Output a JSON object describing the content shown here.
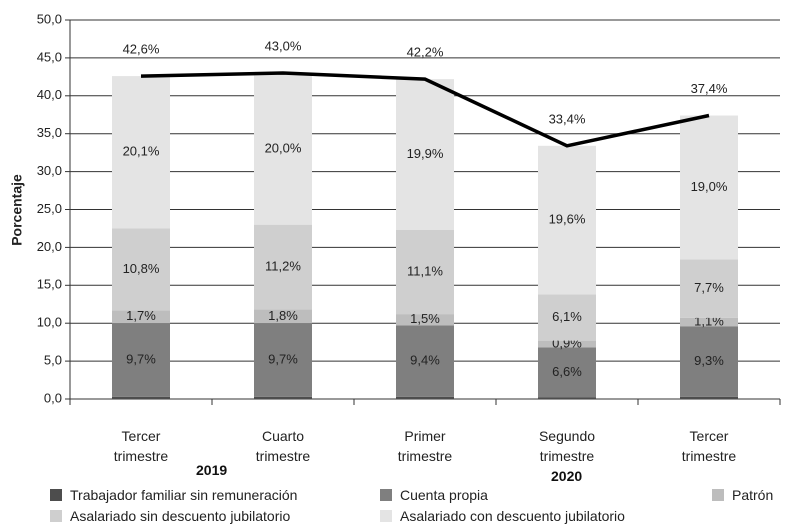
{
  "chart_data": {
    "type": "stacked_bar_line",
    "y_label": "Porcentaje",
    "categories": [
      "Tercer trimestre",
      "Cuarto trimestre",
      "Primer trimestre",
      "Segundo trimestre",
      "Tercer trimestre"
    ],
    "groups": [
      {
        "label": "2019",
        "span": [
          0,
          1
        ]
      },
      {
        "label": "2020",
        "span": [
          2,
          4
        ]
      }
    ],
    "ylim": [
      0,
      50
    ],
    "yticks": [
      {
        "value": 0,
        "label": "0,0"
      },
      {
        "value": 5,
        "label": "5,0"
      },
      {
        "value": 10,
        "label": "10,0"
      },
      {
        "value": 15,
        "label": "15,0"
      },
      {
        "value": 20,
        "label": "20,0"
      },
      {
        "value": 25,
        "label": "25,0"
      },
      {
        "value": 30,
        "label": "30,0"
      },
      {
        "value": 35,
        "label": "35,0"
      },
      {
        "value": 40,
        "label": "40,0"
      },
      {
        "value": 45,
        "label": "45,0"
      },
      {
        "value": 50,
        "label": "50,0"
      }
    ],
    "grid": true,
    "series": [
      {
        "name": "Trabajador familiar sin remuneración",
        "color": "#4d4d4d",
        "values": [
          0.3,
          0.3,
          0.3,
          0.2,
          0.3
        ]
      },
      {
        "name": "Cuenta propia",
        "color": "#7f7f7f",
        "values": [
          9.7,
          9.7,
          9.4,
          6.6,
          9.3
        ],
        "value_labels": [
          "9,7%",
          "9,7%",
          "9,4%",
          "6,6%",
          "9,3%"
        ]
      },
      {
        "name": "Patrón",
        "color": "#bdbdbd",
        "values": [
          1.7,
          1.8,
          1.5,
          0.9,
          1.1
        ],
        "value_labels": [
          "1,7%",
          "1,8%",
          "1,5%",
          "0,9%",
          "1,1%"
        ]
      },
      {
        "name": "Asalariado sin descuento jubilatorio",
        "color": "#cfcfcf",
        "values": [
          10.8,
          11.2,
          11.1,
          6.1,
          7.7
        ],
        "value_labels": [
          "10,8%",
          "11,2%",
          "11,1%",
          "6,1%",
          "7,7%"
        ]
      },
      {
        "name": "Asalariado con descuento jubilatorio",
        "color": "#e4e4e4",
        "values": [
          20.1,
          20.0,
          19.9,
          19.6,
          19.0
        ],
        "value_labels": [
          "20,1%",
          "20,0%",
          "19,9%",
          "19,6%",
          "19,0%"
        ]
      }
    ],
    "line": {
      "color": "#000000",
      "values": [
        42.6,
        43.0,
        42.2,
        33.4,
        37.4
      ],
      "value_labels": [
        "42,6%",
        "43,0%",
        "42,2%",
        "33,4%",
        "37,4%"
      ]
    }
  }
}
